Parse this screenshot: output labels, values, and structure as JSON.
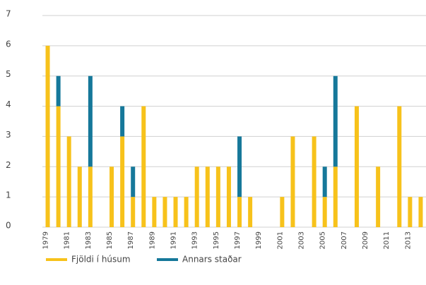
{
  "chart_data": {
    "type": "stacked_bar",
    "categories": [
      "1979",
      null,
      "1981",
      null,
      "1983",
      null,
      "1985",
      null,
      "1987",
      null,
      "1989",
      null,
      "1991",
      null,
      "1993",
      null,
      "1995",
      null,
      "1997",
      null,
      "1999",
      null,
      "2001",
      null,
      "2003",
      null,
      "2005",
      null,
      "2007",
      null,
      "2009",
      null,
      "2011",
      null,
      "2013",
      null
    ],
    "series": [
      {
        "name": "Fjöldi í húsum",
        "color": "#f7c21b",
        "values": [
          6,
          4,
          3,
          2,
          2,
          0,
          2,
          3,
          1,
          4,
          1,
          1,
          1,
          1,
          2,
          2,
          2,
          2,
          1,
          1,
          0,
          0,
          1,
          3,
          0,
          3,
          1,
          2,
          0,
          4,
          0,
          2,
          0,
          4,
          1,
          1
        ]
      },
      {
        "name": "Annars staðar",
        "color": "#16789a",
        "values": [
          0,
          1,
          0,
          0,
          3,
          0,
          0,
          1,
          1,
          0,
          0,
          0,
          0,
          0,
          0,
          0,
          0,
          0,
          2,
          0,
          0,
          0,
          0,
          0,
          0,
          0,
          1,
          3,
          0,
          0,
          0,
          0,
          0,
          0,
          0,
          0
        ]
      }
    ],
    "ylim": [
      0,
      7
    ],
    "yticks": [
      0,
      1,
      2,
      3,
      4,
      5,
      6,
      7
    ],
    "grid": true,
    "legend": "bottom"
  }
}
